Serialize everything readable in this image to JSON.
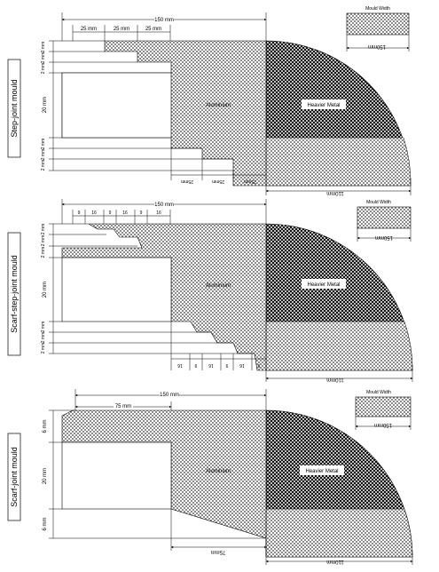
{
  "panels": [
    {
      "id": "step",
      "side_label": "Step-joint mould",
      "top_dim": "150 mm",
      "top_steps": [
        "25 mm",
        "25 mm",
        "25 mm"
      ],
      "left_dims": [
        "2 mm",
        "2 mm",
        "2 mm",
        "20 mm",
        "2 mm",
        "2 mm",
        "2 mm"
      ],
      "aluminium_label": "Aluminium",
      "heavy_label": "Heavier Metal",
      "legend_title": "Mould Width",
      "legend_dim": "150mm",
      "bottom_dims": [
        "25mm",
        "25mm",
        "25mm"
      ],
      "bottom_total": "110mm"
    },
    {
      "id": "scarf-step",
      "side_label": "Scarf-step-joint mould",
      "top_dim": "150 mm",
      "top_steps": [
        "9",
        "16",
        "9",
        "16",
        "9",
        "16"
      ],
      "left_dims": [
        "2 mm",
        "2 mm",
        "2 mm",
        "20 mm",
        "2 mm",
        "2 mm",
        "2 mm"
      ],
      "aluminium_label": "Aluminium",
      "heavy_label": "Heavier Metal",
      "legend_title": "Mould Width",
      "legend_dim": "150mm",
      "bottom_dims": [
        "16",
        "9",
        "16",
        "9",
        "16",
        "9"
      ],
      "bottom_total": "110mm"
    },
    {
      "id": "scarf",
      "side_label": "Scarf-joint mould",
      "top_dim": "150 mm",
      "top_steps": [
        "75 mm"
      ],
      "left_dims": [
        "6 mm",
        "20 mm",
        "6 mm"
      ],
      "aluminium_label": "Aluminium",
      "heavy_label": "Heavier Metal",
      "legend_title": "Mould Width",
      "legend_dim": "150mm",
      "bottom_dims": [
        "75mm"
      ],
      "bottom_total": "110mm"
    }
  ]
}
